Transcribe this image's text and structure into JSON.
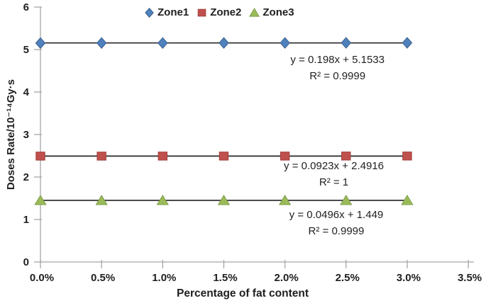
{
  "chart_data": {
    "type": "scatter",
    "title": "",
    "xlabel": "Percentage of fat content",
    "ylabel": "Doses Rate/10⁻¹⁴Gy·s",
    "xlim": [
      0,
      3.5
    ],
    "ylim": [
      0,
      6
    ],
    "grid": false,
    "legend_position": "top-center",
    "x_ticks": [
      0,
      0.5,
      1,
      1.5,
      2,
      2.5,
      3,
      3.5
    ],
    "x_tick_labels": [
      "0.0%",
      "0.5%",
      "1.0%",
      "1.5%",
      "2.0%",
      "2.5%",
      "3.0%",
      "3.5%"
    ],
    "y_ticks": [
      0,
      1,
      2,
      3,
      4,
      5,
      6
    ],
    "y_tick_labels": [
      "0",
      "1",
      "2",
      "3",
      "4",
      "5",
      "6"
    ],
    "x": [
      0,
      0.5,
      1,
      1.5,
      2,
      2.5,
      3
    ],
    "series": [
      {
        "name": "Zone1",
        "marker": "diamond",
        "fill": "#4f81bd",
        "edge": "#3a5f8b",
        "values": [
          5.153,
          5.154,
          5.155,
          5.156,
          5.157,
          5.158,
          5.159
        ],
        "trend_y": 5.156,
        "trend_x": [
          0,
          3
        ]
      },
      {
        "name": "Zone2",
        "marker": "square",
        "fill": "#c0504d",
        "edge": "#9e3d3a",
        "values": [
          2.492,
          2.492,
          2.493,
          2.493,
          2.493,
          2.494,
          2.494
        ],
        "trend_y": 2.493,
        "trend_x": [
          0,
          3
        ]
      },
      {
        "name": "Zone3",
        "marker": "triangle",
        "fill": "#9bbb59",
        "edge": "#7e9d48",
        "values": [
          1.449,
          1.449,
          1.45,
          1.45,
          1.45,
          1.45,
          1.451
        ],
        "trend_y": 1.45,
        "trend_x": [
          0,
          3
        ]
      }
    ],
    "annotations": [
      {
        "series": "Zone1",
        "equation": "y = 0.198x + 5.1533",
        "r_squared": "R² = 0.9999",
        "anchor_x": 2.43,
        "anchor_y": 4.57
      },
      {
        "series": "Zone2",
        "equation": "y = 0.0923x + 2.4916",
        "r_squared": "R² = 1",
        "anchor_x": 2.4,
        "anchor_y": 2.07
      },
      {
        "series": "Zone3",
        "equation": "y = 0.0496x + 1.449",
        "r_squared": "R² = 0.9999",
        "anchor_x": 2.42,
        "anchor_y": 0.92
      }
    ],
    "colors": {
      "axis": "#a6a6a6",
      "trendline": "#333333",
      "text": "#1f1f1f"
    }
  }
}
